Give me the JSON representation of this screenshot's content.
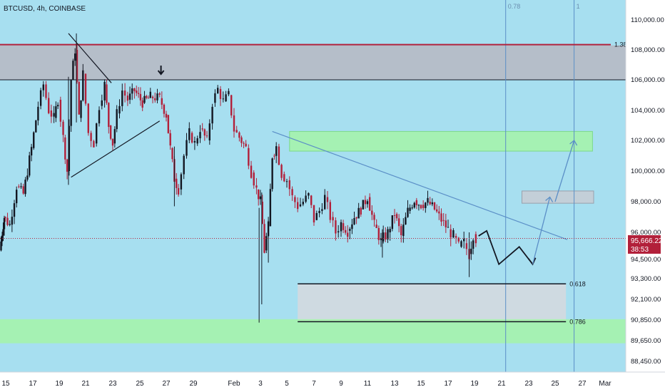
{
  "header": {
    "symbol": "BTCUSD, 4h, COINBASE"
  },
  "fib_top_labels": [
    "0.78",
    "1"
  ],
  "fib_labels": {
    "ext": "1.38",
    "a": "0.618",
    "b": "0.786"
  },
  "price_box": {
    "price": "95,666.22",
    "countdown": "38:53"
  },
  "chart_data": {
    "type": "candlestick",
    "symbol": "BTCUSD",
    "timeframe": "4h",
    "exchange": "COINBASE",
    "ylim": [
      88000,
      112500
    ],
    "y_ticks": [
      110000,
      108000,
      106000,
      104000,
      102000,
      100000,
      98000,
      96000,
      94500,
      93300,
      92100,
      90850,
      89650,
      88450
    ],
    "y_tick_labels": [
      "110,000.00",
      "108,000.00",
      "106,000.00",
      "104,000.00",
      "102,000.00",
      "100,000.00",
      "98,000.00",
      "96,000.00",
      "94,500.00",
      "93,300.00",
      "92,100.00",
      "90,850.00",
      "89,650.00",
      "88,450.00"
    ],
    "x_tick_labels": [
      "15",
      "17",
      "19",
      "21",
      "23",
      "25",
      "27",
      "29",
      "Feb",
      "3",
      "5",
      "7",
      "9",
      "11",
      "13",
      "15",
      "17",
      "19",
      "21",
      "23",
      "25",
      "27",
      "Mar"
    ],
    "x_tick_days": [
      15,
      17,
      19,
      21,
      23,
      25,
      27,
      29,
      32,
      34,
      36,
      38,
      40,
      42,
      44,
      46,
      48,
      50,
      52,
      54,
      56,
      58,
      60
    ],
    "last_price": 95666.22,
    "ohlc_path": [
      [
        14.2,
        95000
      ],
      [
        14.8,
        97000
      ],
      [
        15.3,
        96500
      ],
      [
        15.8,
        99000
      ],
      [
        16.3,
        98500
      ],
      [
        16.9,
        101500
      ],
      [
        17.4,
        104300
      ],
      [
        17.8,
        105700
      ],
      [
        18.2,
        104000
      ],
      [
        18.6,
        103500
      ],
      [
        18.9,
        104700
      ],
      [
        19.3,
        102200
      ],
      [
        19.6,
        100000
      ],
      [
        19.9,
        106000
      ],
      [
        20.2,
        108000
      ],
      [
        20.5,
        103500
      ],
      [
        20.8,
        106400
      ],
      [
        21.2,
        102500
      ],
      [
        21.6,
        101800
      ],
      [
        22.0,
        104300
      ],
      [
        22.4,
        105700
      ],
      [
        22.7,
        103000
      ],
      [
        23.0,
        101800
      ],
      [
        23.3,
        103800
      ],
      [
        23.7,
        105300
      ],
      [
        24.1,
        104700
      ],
      [
        24.6,
        105300
      ],
      [
        25.2,
        104500
      ],
      [
        25.8,
        104900
      ],
      [
        26.5,
        104800
      ],
      [
        27.0,
        103700
      ],
      [
        27.3,
        101500
      ],
      [
        27.6,
        99500
      ],
      [
        27.9,
        98800
      ],
      [
        28.3,
        101000
      ],
      [
        28.7,
        102500
      ],
      [
        29.1,
        101800
      ],
      [
        29.5,
        102800
      ],
      [
        30.0,
        102000
      ],
      [
        30.4,
        104500
      ],
      [
        30.8,
        105400
      ],
      [
        31.2,
        104600
      ],
      [
        31.6,
        105000
      ],
      [
        32.0,
        102700
      ],
      [
        32.4,
        102200
      ],
      [
        32.9,
        101500
      ],
      [
        33.3,
        99900
      ],
      [
        33.7,
        98800
      ],
      [
        34.0,
        98000
      ],
      [
        34.3,
        95000
      ],
      [
        34.6,
        96400
      ],
      [
        34.9,
        101000
      ],
      [
        35.2,
        101600
      ],
      [
        35.6,
        99800
      ],
      [
        36.0,
        99400
      ],
      [
        36.4,
        98300
      ],
      [
        36.8,
        97700
      ],
      [
        37.2,
        98000
      ],
      [
        37.6,
        98400
      ],
      [
        38.0,
        96800
      ],
      [
        38.4,
        97400
      ],
      [
        38.8,
        98300
      ],
      [
        39.2,
        97000
      ],
      [
        39.6,
        96000
      ],
      [
        40.0,
        96600
      ],
      [
        40.5,
        96100
      ],
      [
        41.0,
        97000
      ],
      [
        41.5,
        97500
      ],
      [
        42.0,
        98300
      ],
      [
        42.5,
        96500
      ],
      [
        43.0,
        95500
      ],
      [
        43.5,
        96000
      ],
      [
        44.0,
        97200
      ],
      [
        44.5,
        95800
      ],
      [
        45.0,
        97400
      ],
      [
        45.5,
        98100
      ],
      [
        46.0,
        97800
      ],
      [
        46.5,
        98000
      ],
      [
        47.0,
        97500
      ],
      [
        47.5,
        96800
      ],
      [
        48.0,
        96200
      ],
      [
        48.4,
        95800
      ],
      [
        48.8,
        95200
      ],
      [
        49.2,
        95400
      ],
      [
        49.6,
        94800
      ],
      [
        49.9,
        95900
      ],
      [
        50.1,
        95666
      ]
    ],
    "wicks": [
      {
        "day": 20.3,
        "high": 109100,
        "low": 103200
      },
      {
        "day": 19.7,
        "high": 106200,
        "low": 99100
      },
      {
        "day": 27.6,
        "high": 101600,
        "low": 97700
      },
      {
        "day": 34.1,
        "high": 98600,
        "low": 91800
      },
      {
        "day": 33.9,
        "high": 97600,
        "low": 90700
      },
      {
        "day": 34.6,
        "high": 96800,
        "low": 94300
      },
      {
        "day": 49.6,
        "high": 96000,
        "low": 93400
      },
      {
        "day": 43.1,
        "high": 96200,
        "low": 94600
      }
    ],
    "zones": [
      {
        "name": "resistance-zone",
        "y_top": 108300,
        "y_bottom": 106000,
        "color": "#b7b9c2"
      },
      {
        "name": "target-zone-upper",
        "x0": 36.2,
        "x1": 58.9,
        "y_top": 102600,
        "y_bottom": 101300,
        "color": "#a5f5a8"
      },
      {
        "name": "target-zone-mid",
        "x0": 53.5,
        "x1": 59.0,
        "y_top": 98700,
        "y_bottom": 97900,
        "color": "#c8ccd3"
      },
      {
        "name": "fib-zone",
        "x0": 36.8,
        "x1": 56.8,
        "y_top": 93000,
        "y_bottom": 90750,
        "color": "#d6d9de"
      },
      {
        "name": "support-band",
        "y_top": 90900,
        "y_bottom": 89500,
        "color": "#a5f5a8"
      }
    ],
    "fib_verticals": [
      {
        "day": 52.3,
        "label": "0.78"
      },
      {
        "day": 57.4,
        "label": "1"
      }
    ],
    "fib_horizontals": [
      {
        "price": 93000,
        "x0": 36.8,
        "x1": 56.8,
        "label": "0.618"
      },
      {
        "price": 90750,
        "x0": 36.8,
        "x1": 56.8,
        "label": "0.786"
      },
      {
        "price": 108350,
        "label": "1.38"
      }
    ],
    "trendlines": [
      {
        "name": "wedge-upper",
        "points": [
          [
            19.7,
            109100
          ],
          [
            22.9,
            105800
          ]
        ],
        "color": "#131722"
      },
      {
        "name": "wedge-lower",
        "points": [
          [
            19.9,
            99600
          ],
          [
            26.5,
            103300
          ]
        ],
        "color": "#131722"
      },
      {
        "name": "descending-trendline",
        "points": [
          [
            34.9,
            102600
          ],
          [
            56.9,
            95600
          ]
        ],
        "color": "#5b8fc7"
      }
    ],
    "projection_path": [
      [
        50.3,
        95800
      ],
      [
        50.9,
        96100
      ],
      [
        51.8,
        94200
      ],
      [
        53.3,
        95200
      ],
      [
        54.3,
        94200
      ]
    ],
    "projection_arrow": [
      [
        54.3,
        94200
      ],
      [
        55.6,
        98300
      ]
    ],
    "projection_arrow2": [
      [
        56.0,
        98000
      ],
      [
        57.4,
        102000
      ]
    ],
    "annotations": [
      {
        "type": "arrow-down",
        "day": 26.6,
        "price": 107000
      }
    ],
    "colors": {
      "bull": "#131722",
      "bear": "#b2203a",
      "resistance_line": "#b2203a",
      "background": "#a7dff0"
    }
  }
}
